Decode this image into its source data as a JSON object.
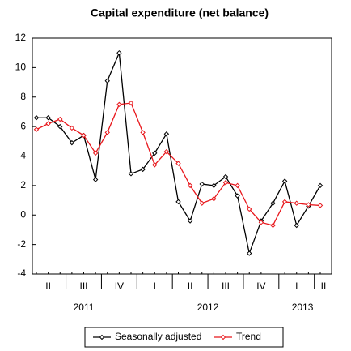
{
  "chart_data": {
    "type": "line",
    "title": "Capital expenditure (net balance)",
    "categories": [
      null,
      null,
      null,
      null,
      null,
      null,
      null,
      null,
      null,
      null,
      null,
      null,
      null,
      null,
      null,
      null,
      null,
      null,
      null,
      null,
      null,
      null,
      null,
      null,
      null
    ],
    "quarter_labels": [
      "II",
      "III",
      "IV",
      "I",
      "II",
      "III",
      "IV",
      "I",
      "II"
    ],
    "year_labels": [
      "2011",
      "2012",
      "2013"
    ],
    "series": [
      {
        "name": "Seasonally adjusted",
        "color": "#000000",
        "values": [
          6.6,
          6.6,
          6.0,
          4.9,
          5.4,
          2.4,
          9.1,
          11.0,
          2.8,
          3.1,
          4.2,
          5.5,
          0.9,
          -0.4,
          2.1,
          2.0,
          2.6,
          1.3,
          -2.6,
          -0.4,
          0.8,
          2.3,
          -0.7,
          0.6,
          2.0
        ]
      },
      {
        "name": "Trend",
        "color": "#e8161b",
        "values": [
          5.8,
          6.2,
          6.5,
          5.9,
          5.4,
          4.2,
          5.6,
          7.5,
          7.6,
          5.6,
          3.4,
          4.3,
          3.5,
          2.0,
          0.8,
          1.1,
          2.2,
          2.0,
          0.4,
          -0.5,
          -0.7,
          0.9,
          0.8,
          0.7,
          0.65
        ]
      }
    ],
    "ylim": [
      -4,
      12
    ],
    "yticks": [
      -4,
      -2,
      0,
      2,
      4,
      6,
      8,
      10,
      12
    ],
    "legend": "bottom"
  }
}
